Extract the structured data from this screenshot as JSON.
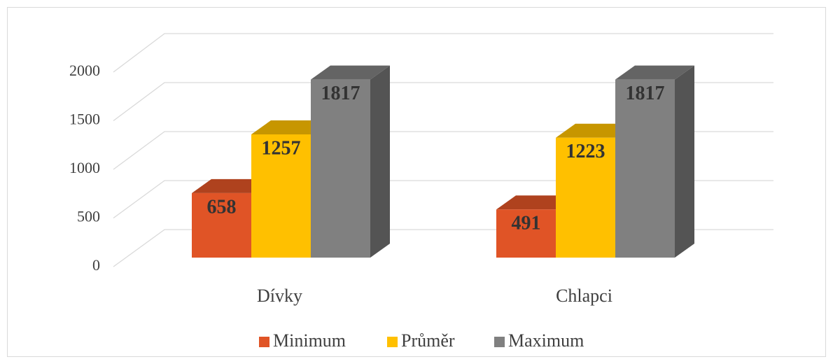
{
  "chart_data": {
    "type": "bar3d",
    "categories": [
      "Dívky",
      "Chlapci"
    ],
    "series": [
      {
        "name": "Minimum",
        "color": "#e05426",
        "values": [
          658,
          491
        ]
      },
      {
        "name": "Průměr",
        "color": "#ffc000",
        "values": [
          1257,
          1223
        ]
      },
      {
        "name": "Maximum",
        "color": "#808080",
        "values": [
          1817,
          1817
        ]
      }
    ],
    "ylim": [
      0,
      2000
    ],
    "yticks": [
      0,
      500,
      1000,
      1500,
      2000
    ],
    "grid": true,
    "legend": "bottom"
  }
}
